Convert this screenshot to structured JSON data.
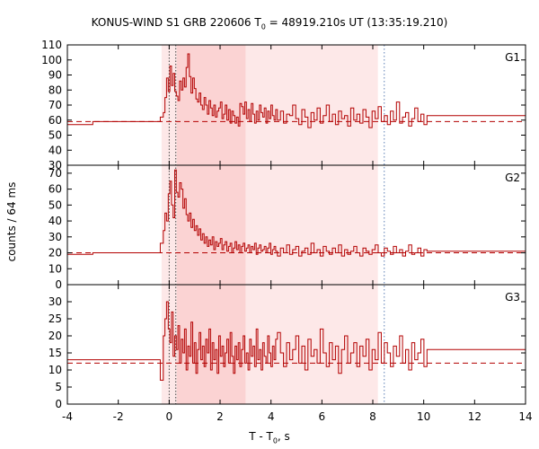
{
  "chart_data": {
    "type": "line",
    "title": {
      "pre": "KONUS-WIND S1 GRB 220606 T",
      "sub": "0",
      "post": " = 48919.210s UT (13:35:19.210)"
    },
    "xlabel": {
      "pre": "T - T",
      "sub": "0",
      "post": ", s"
    },
    "ylabel": "counts / 64 ms",
    "xlim": [
      -4,
      14
    ],
    "xticks": [
      -4,
      -2,
      0,
      2,
      4,
      6,
      8,
      10,
      12,
      14
    ],
    "x_tick_labels": [
      "-4",
      "-2",
      "0",
      "2",
      "4",
      "6",
      "8",
      "10",
      "12",
      "14"
    ],
    "line_color": "#b30000",
    "intervals": [
      {
        "start": -0.3,
        "end": 8.2,
        "color": "#fde8e8"
      },
      {
        "start": 0.3,
        "end": 3.0,
        "color": "#fbd3d3"
      }
    ],
    "markers": [
      {
        "x": 0.0,
        "style": "dotted"
      },
      {
        "x": 0.26,
        "style": "dotted"
      },
      {
        "x": 8.45,
        "style": "dotted-blue"
      }
    ],
    "panels": [
      {
        "name": "G1",
        "ylim": [
          30,
          110
        ],
        "yticks": [
          30,
          40,
          50,
          60,
          70,
          80,
          90,
          100,
          110
        ],
        "background": 59,
        "pre": [
          [
            -4.0,
            57
          ],
          [
            -3.0,
            59
          ],
          [
            -2.0,
            59
          ],
          [
            -0.5,
            59
          ],
          [
            -0.35,
            62
          ]
        ],
        "burst": [
          65,
          75,
          88,
          79,
          96,
          83,
          91,
          79,
          76,
          73,
          86,
          80,
          88,
          82,
          95,
          104,
          89,
          78,
          88,
          81,
          74,
          72,
          78,
          70,
          67,
          75,
          70,
          64,
          73,
          68,
          63,
          70,
          62,
          66,
          68,
          72,
          61,
          64,
          70,
          60,
          67,
          58,
          66,
          63,
          58,
          62,
          56,
          71,
          69,
          64,
          72,
          61,
          67,
          59,
          71,
          64,
          58,
          66,
          60,
          70,
          65,
          62,
          68,
          58,
          66,
          61,
          70,
          63,
          60,
          67
        ],
        "tail": [
          60,
          66,
          58,
          64,
          63,
          70,
          61,
          57,
          67,
          62,
          55,
          65,
          60,
          68,
          58,
          63,
          70,
          59,
          64,
          57,
          66,
          61,
          63,
          56,
          68,
          60,
          64,
          58,
          67,
          62,
          55,
          66,
          61,
          69,
          59,
          63,
          57,
          66,
          60,
          72,
          58,
          62,
          65,
          56,
          61,
          68,
          59,
          64,
          57,
          63
        ]
      },
      {
        "name": "G2",
        "ylim": [
          0,
          75
        ],
        "yticks": [
          0,
          10,
          20,
          30,
          40,
          50,
          60,
          70
        ],
        "background": 20,
        "pre": [
          [
            -4.0,
            19
          ],
          [
            -3.0,
            20
          ],
          [
            -2.0,
            20
          ],
          [
            -0.5,
            20
          ],
          [
            -0.35,
            26
          ]
        ],
        "burst": [
          34,
          45,
          40,
          57,
          65,
          50,
          42,
          72,
          58,
          55,
          64,
          60,
          48,
          54,
          44,
          40,
          45,
          36,
          41,
          34,
          37,
          31,
          35,
          28,
          32,
          26,
          30,
          24,
          28,
          25,
          30,
          22,
          27,
          24,
          26,
          29,
          22,
          25,
          27,
          21,
          24,
          26,
          20,
          23,
          27,
          22,
          25,
          20,
          24,
          26,
          21,
          23,
          25,
          20,
          24,
          22,
          26,
          19,
          23,
          25,
          21,
          22,
          24,
          20,
          23,
          26,
          19,
          22,
          24,
          21
        ],
        "tail": [
          18,
          23,
          20,
          25,
          19,
          22,
          24,
          18,
          21,
          23,
          19,
          26,
          20,
          22,
          18,
          24,
          21,
          19,
          23,
          20,
          25,
          18,
          22,
          19,
          21,
          24,
          20,
          18,
          23,
          21,
          19,
          22,
          25,
          20,
          18,
          23,
          21,
          19,
          24,
          20,
          22,
          18,
          21,
          25,
          19,
          20,
          23,
          18,
          22,
          21
        ]
      },
      {
        "name": "G3",
        "ylim": [
          0,
          35
        ],
        "yticks": [
          0,
          5,
          10,
          15,
          20,
          25,
          30
        ],
        "background": 12,
        "pre": [
          [
            -4.0,
            13
          ],
          [
            -3.0,
            13
          ],
          [
            -2.0,
            13
          ],
          [
            -0.5,
            13
          ],
          [
            -0.35,
            7
          ]
        ],
        "burst": [
          20,
          25,
          30,
          22,
          18,
          27,
          14,
          20,
          16,
          23,
          12,
          19,
          15,
          22,
          10,
          17,
          14,
          24,
          12,
          18,
          9,
          16,
          21,
          13,
          17,
          11,
          19,
          15,
          22,
          10,
          18,
          13,
          16,
          9,
          20,
          14,
          17,
          11,
          15,
          19,
          12,
          21,
          14,
          9,
          17,
          13,
          18,
          11,
          16,
          20,
          12,
          15,
          10,
          19,
          14,
          17,
          11,
          22,
          13,
          16,
          10,
          18,
          14,
          12,
          20,
          15,
          11,
          17,
          13,
          19
        ],
        "tail": [
          21,
          15,
          11,
          18,
          13,
          16,
          20,
          12,
          17,
          10,
          19,
          14,
          16,
          12,
          22,
          15,
          11,
          18,
          13,
          17,
          9,
          16,
          20,
          12,
          15,
          18,
          11,
          17,
          14,
          19,
          10,
          16,
          13,
          21,
          12,
          18,
          15,
          11,
          17,
          14,
          20,
          12,
          16,
          10,
          18,
          13,
          15,
          19,
          11,
          16
        ]
      }
    ]
  }
}
